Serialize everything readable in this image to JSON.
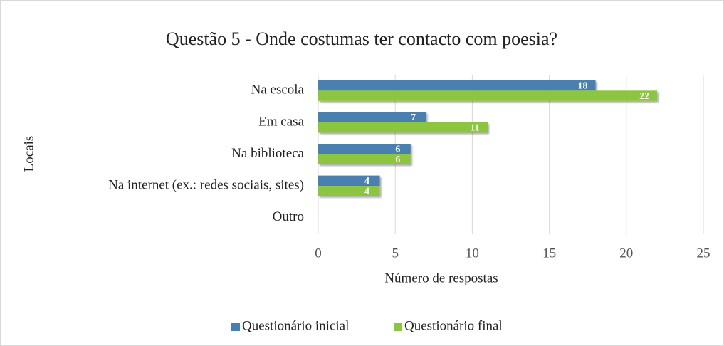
{
  "chart_data": {
    "type": "hbar",
    "title": "Questão 5 - Onde costumas ter contacto com poesia?",
    "x_label": "Número de respostas",
    "y_label": "Locais",
    "categories": [
      "Na escola",
      "Em casa",
      "Na biblioteca",
      "Na internet (ex.: redes sociais, sites)",
      "Outro"
    ],
    "series": [
      {
        "name": "Questionário inicial",
        "color": "#4a80b0",
        "values": [
          18,
          7,
          6,
          4,
          null
        ]
      },
      {
        "name": "Questionário final",
        "color": "#8cc63f",
        "values": [
          22,
          11,
          6,
          4,
          null
        ]
      }
    ],
    "xlim": [
      0,
      25
    ],
    "xticks": [
      0,
      5,
      10,
      15,
      20,
      25
    ],
    "grid": true,
    "legend": "bottom"
  }
}
